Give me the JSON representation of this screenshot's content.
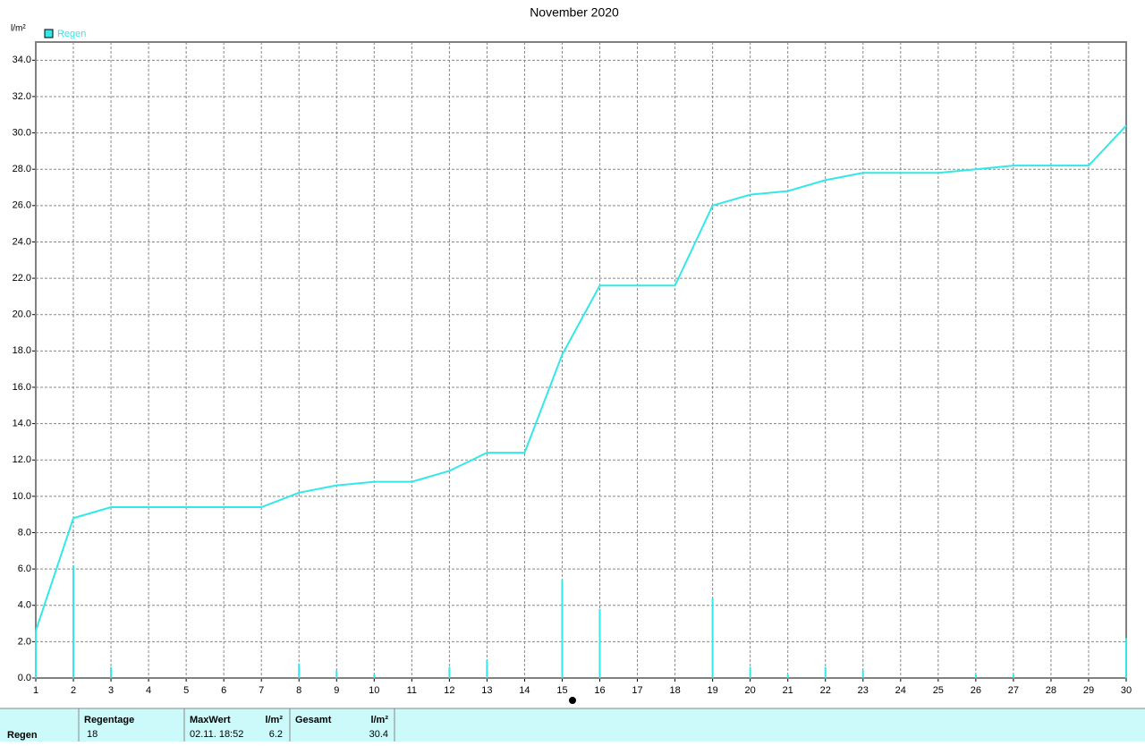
{
  "chart_data": {
    "type": "line",
    "title": "November 2020",
    "y_unit": "l/m²",
    "x": [
      1,
      2,
      3,
      4,
      5,
      6,
      7,
      8,
      9,
      10,
      11,
      12,
      13,
      14,
      15,
      16,
      17,
      18,
      19,
      20,
      21,
      22,
      23,
      24,
      25,
      26,
      27,
      28,
      29,
      30
    ],
    "series": [
      {
        "name": "Regen",
        "type": "line",
        "color": "#33e8e8",
        "values": [
          2.6,
          8.8,
          9.4,
          9.4,
          9.4,
          9.4,
          9.4,
          10.2,
          10.6,
          10.8,
          10.8,
          11.4,
          12.4,
          12.4,
          17.8,
          21.6,
          21.6,
          21.6,
          26.0,
          26.6,
          26.8,
          27.4,
          27.8,
          27.8,
          27.8,
          28.0,
          28.2,
          28.2,
          28.2,
          30.4
        ]
      },
      {
        "type": "bar",
        "color": "#33e8e8",
        "values": [
          2.6,
          6.2,
          0.6,
          0,
          0,
          0,
          0,
          0.8,
          0.4,
          0.2,
          0,
          0.6,
          1.0,
          0,
          5.4,
          3.8,
          0,
          0,
          4.4,
          0.6,
          0.2,
          0.6,
          0.4,
          0,
          0,
          0.2,
          0.2,
          0,
          0,
          2.2
        ]
      }
    ],
    "xlim": [
      1,
      30
    ],
    "xticks": [
      1,
      2,
      3,
      4,
      5,
      6,
      7,
      8,
      9,
      10,
      11,
      12,
      13,
      14,
      15,
      16,
      17,
      18,
      19,
      20,
      21,
      22,
      23,
      24,
      25,
      26,
      27,
      28,
      29,
      30
    ],
    "ylim": [
      0,
      35
    ],
    "yticks": [
      {
        "value": 0,
        "label": "0.0"
      },
      {
        "value": 2,
        "label": "2.0"
      },
      {
        "value": 4,
        "label": "4.0"
      },
      {
        "value": 6,
        "label": "6.0"
      },
      {
        "value": 8,
        "label": "8.0"
      },
      {
        "value": 10,
        "label": "10.0"
      },
      {
        "value": 12,
        "label": "12.0"
      },
      {
        "value": 14,
        "label": "14.0"
      },
      {
        "value": 16,
        "label": "16.0"
      },
      {
        "value": 18,
        "label": "18.0"
      },
      {
        "value": 20,
        "label": "20.0"
      },
      {
        "value": 22,
        "label": "22.0"
      },
      {
        "value": 24,
        "label": "24.0"
      },
      {
        "value": 26,
        "label": "26.0"
      },
      {
        "value": 28,
        "label": "28.0"
      },
      {
        "value": 30,
        "label": "30.0"
      },
      {
        "value": 32,
        "label": "32.0"
      },
      {
        "value": 34,
        "label": "34.0"
      }
    ],
    "grid": true
  },
  "table": {
    "header": [
      "Regentage",
      "MaxWert",
      "l/m²",
      "Gesamt",
      "l/m²"
    ],
    "row": [
      "Regen",
      "18",
      "02.11.  18:52",
      "6.2",
      "30.4"
    ]
  }
}
